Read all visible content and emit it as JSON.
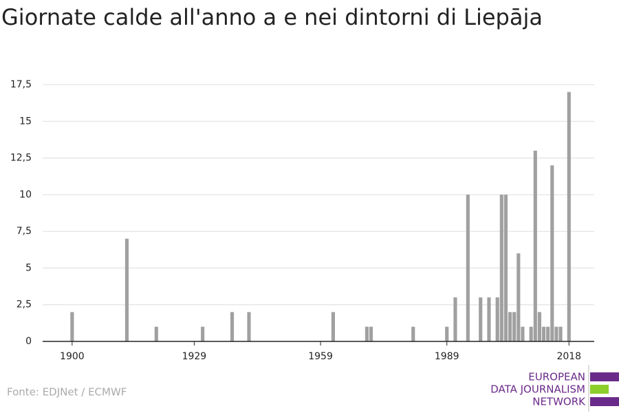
{
  "chart_data": {
    "type": "bar",
    "title": "Giornate calde all'anno a e nei dintorni di Liepāja",
    "source": "Fonte: EDJNet / ECMWF",
    "logo_text": [
      "EUROPEAN",
      "DATA JOURNALISM",
      "NETWORK"
    ],
    "x": [
      1900,
      1913,
      1920,
      1931,
      1938,
      1942,
      1962,
      1970,
      1971,
      1981,
      1989,
      1991,
      1994,
      1997,
      1999,
      2001,
      2002,
      2003,
      2004,
      2005,
      2006,
      2007,
      2009,
      2010,
      2011,
      2012,
      2013,
      2014,
      2015,
      2016,
      2018
    ],
    "values": [
      2,
      7,
      1,
      1,
      2,
      2,
      2,
      1,
      1,
      1,
      1,
      3,
      10,
      3,
      3,
      3,
      10,
      10,
      2,
      2,
      6,
      1,
      1,
      13,
      2,
      1,
      1,
      12,
      1,
      1,
      17
    ],
    "color": "#a0a0a0",
    "xlim": [
      1893,
      2024
    ],
    "xticks": [
      1900,
      1929,
      1959,
      1989,
      2018
    ],
    "ylim": [
      0,
      17.5
    ],
    "yticks": [
      0,
      {
        "value": 2.5,
        "label": "2,5"
      },
      5,
      {
        "value": 7.5,
        "label": "7,5"
      },
      10,
      {
        "value": 12.5,
        "label": "12,5"
      },
      15,
      {
        "value": 17.5,
        "label": "17,5"
      }
    ],
    "grid": true
  }
}
